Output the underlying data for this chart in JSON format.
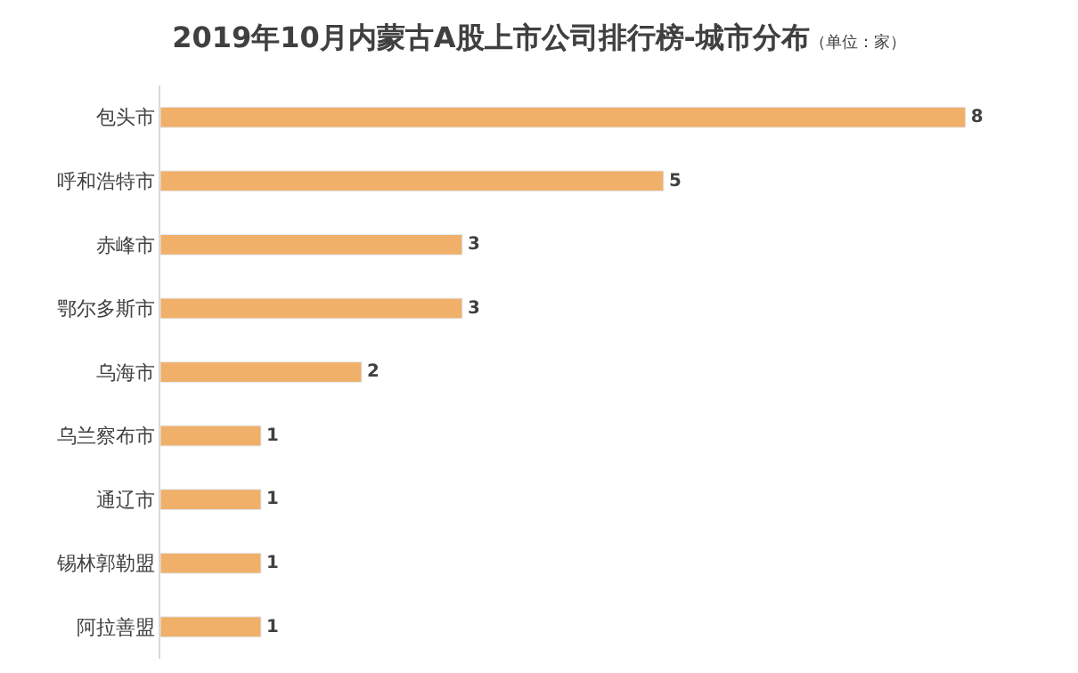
{
  "chart_data": {
    "type": "bar",
    "orientation": "horizontal",
    "title": "2019年10月内蒙古A股上市公司排行榜-城市分布",
    "subtitle": "（单位：家）",
    "categories": [
      "包头市",
      "呼和浩特市",
      "赤峰市",
      "鄂尔多斯市",
      "乌海市",
      "乌兰察布市",
      "通辽市",
      "锡林郭勒盟",
      "阿拉善盟"
    ],
    "values": [
      8,
      5,
      3,
      3,
      2,
      1,
      1,
      1,
      1
    ],
    "color": "#f0b06a",
    "data_labels": true
  }
}
